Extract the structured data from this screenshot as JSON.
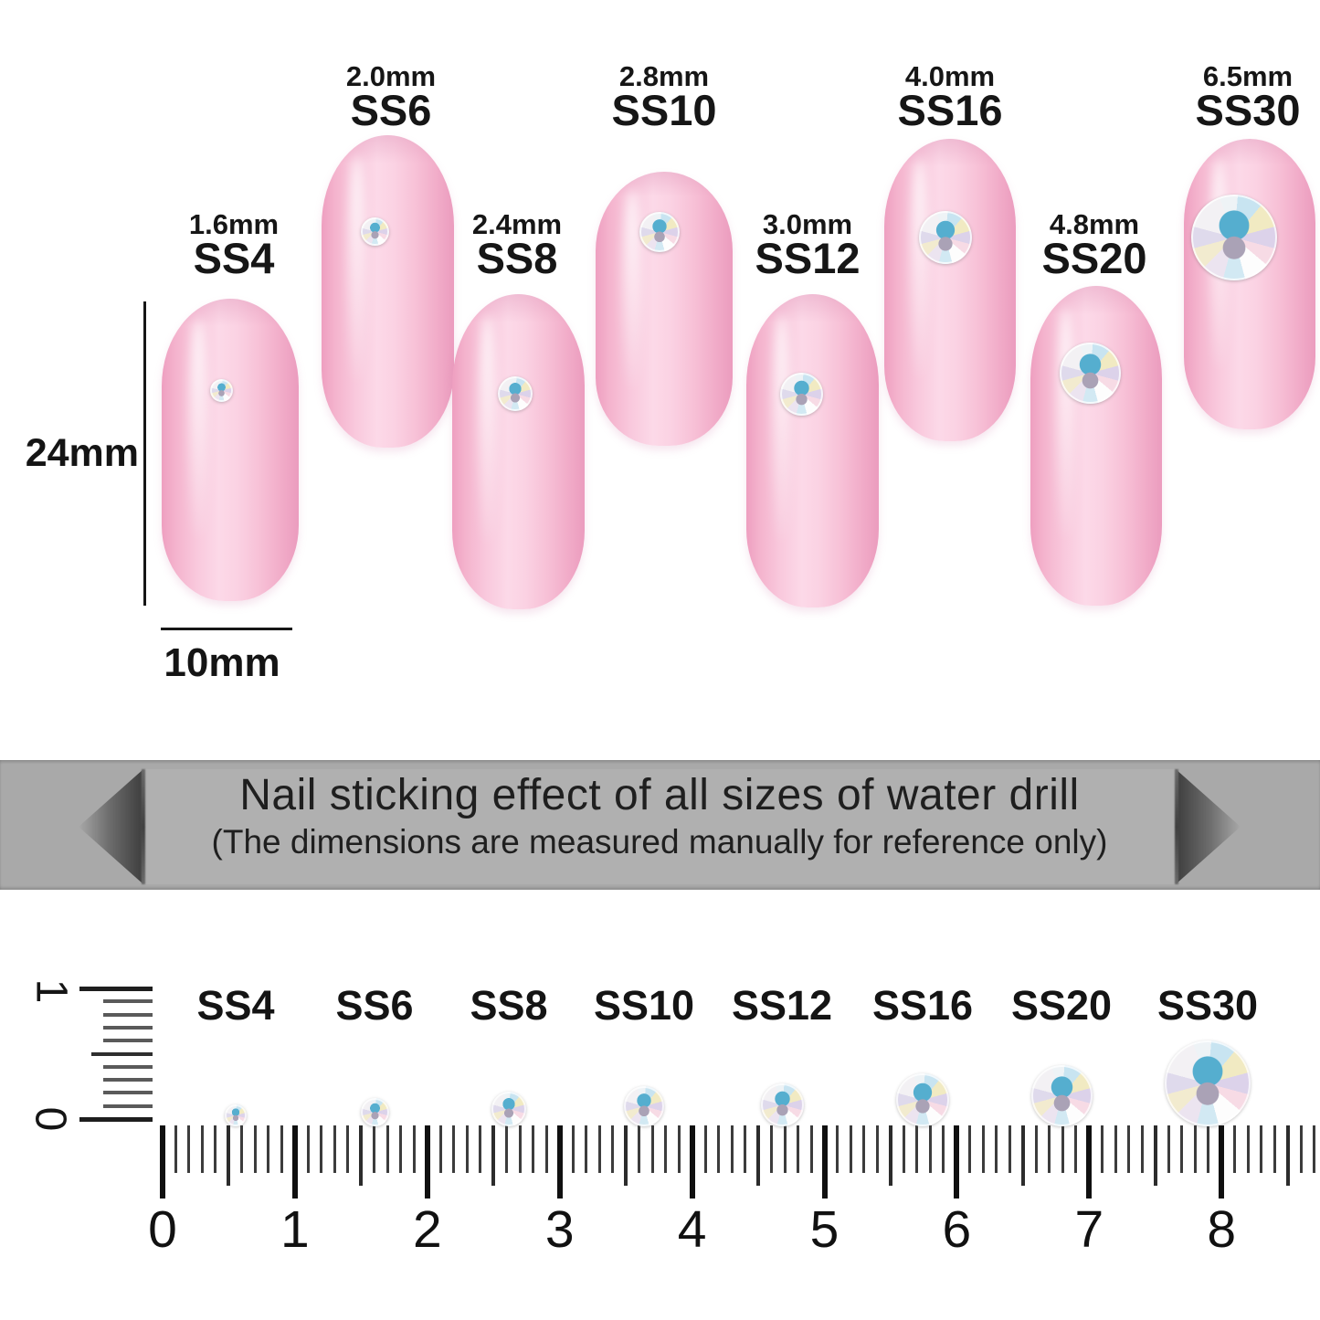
{
  "colors": {
    "background": "#ffffff",
    "nail_pink": "#f8c3d9",
    "banner_band": "#a9a9a9",
    "banner_panel": "#b0b0b0",
    "text": "#1a1a1a",
    "stone_teal": "#55aecf"
  },
  "size_chart": {
    "height_label": "24mm",
    "width_label": "10mm",
    "nails": [
      {
        "ss": "SS4",
        "mm": "1.6mm"
      },
      {
        "ss": "SS6",
        "mm": "2.0mm"
      },
      {
        "ss": "SS8",
        "mm": "2.4mm"
      },
      {
        "ss": "SS10",
        "mm": "2.8mm"
      },
      {
        "ss": "SS12",
        "mm": "3.0mm"
      },
      {
        "ss": "SS16",
        "mm": "4.0mm"
      },
      {
        "ss": "SS20",
        "mm": "4.8mm"
      },
      {
        "ss": "SS30",
        "mm": "6.5mm"
      }
    ]
  },
  "banner": {
    "title": "Nail sticking effect of all sizes of water drill",
    "subtitle": "(The dimensions are measured manually for reference only)"
  },
  "ruler": {
    "stone_labels": [
      "SS4",
      "SS6",
      "SS8",
      "SS10",
      "SS12",
      "SS16",
      "SS20",
      "SS30"
    ],
    "numbers": [
      "0",
      "1",
      "2",
      "3",
      "4",
      "5",
      "6",
      "7",
      "8"
    ],
    "vertical_numbers": [
      "0",
      "1"
    ]
  }
}
